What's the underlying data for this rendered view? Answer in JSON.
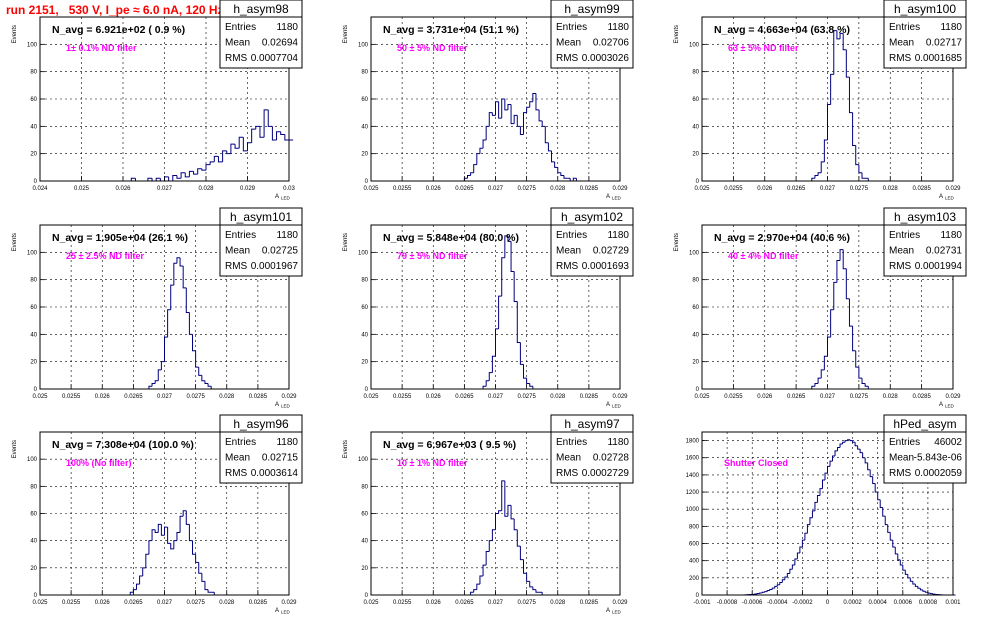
{
  "canvas_title": "run 2151,   530 V, I_pe ≈ 6.0 nA, 120 Hz",
  "colors": {
    "histogram": "#000080",
    "annotation": "#ff00ff",
    "title": "#ff0000",
    "grid": "#000000"
  },
  "chart_data": [
    {
      "type": "bar",
      "name": "h_asym98",
      "navg": "N_avg = 6.921e+02 ( 0.9 %)",
      "filter": "1± 0.1% ND filter",
      "stats": [
        [
          "Entries",
          "1180"
        ],
        [
          "Mean",
          "0.02694"
        ],
        [
          "RMS",
          "0.0007704"
        ]
      ],
      "ylabel": "Events",
      "xlabel": "A_LED",
      "xlim": [
        0.024,
        0.03
      ],
      "ylim": [
        0,
        120
      ],
      "xticks": [
        "0.024",
        "0.025",
        "0.026",
        "0.027",
        "0.028",
        "0.029",
        "0.03"
      ],
      "yticks": [
        "0",
        "20",
        "40",
        "60",
        "80",
        "100"
      ],
      "bin_start": 0.024,
      "bin_width": 0.0001,
      "values": [
        0,
        0,
        0,
        0,
        0,
        0,
        0,
        0,
        0,
        0,
        0,
        0,
        0,
        0,
        0,
        0,
        0,
        0,
        0,
        0,
        0,
        0,
        2,
        0,
        0,
        0,
        2,
        0,
        2,
        0,
        3,
        0,
        4,
        2,
        6,
        3,
        7,
        5,
        9,
        8,
        12,
        14,
        18,
        14,
        22,
        20,
        27,
        24,
        32,
        22,
        28,
        38,
        40,
        32,
        52,
        40,
        30,
        36,
        34,
        30,
        30,
        26,
        22,
        20,
        24,
        18,
        22,
        14,
        16,
        10,
        12,
        8,
        10,
        8,
        6,
        6,
        4,
        8,
        6,
        4,
        2,
        4,
        2,
        2,
        2,
        0,
        0,
        0,
        0,
        0,
        0,
        0,
        0,
        0,
        0,
        0,
        0,
        0,
        0,
        0,
        0,
        0,
        0,
        0,
        0,
        0,
        0,
        0,
        0,
        0,
        0,
        0,
        0,
        0,
        0,
        0
      ]
    },
    {
      "type": "bar",
      "name": "h_asym99",
      "navg": "N_avg = 3.731e+04 (51.1 %)",
      "filter": "50 ± 5% ND filter",
      "stats": [
        [
          "Entries",
          "1180"
        ],
        [
          "Mean",
          "0.02706"
        ],
        [
          "RMS",
          "0.0003026"
        ]
      ],
      "ylabel": "Events",
      "xlabel": "A_LED",
      "xlim": [
        0.025,
        0.029
      ],
      "ylim": [
        0,
        120
      ],
      "xticks": [
        "0.025",
        "0.0255",
        "0.026",
        "0.0265",
        "0.027",
        "0.0275",
        "0.028",
        "0.0285",
        "0.029"
      ],
      "yticks": [
        "0",
        "20",
        "40",
        "60",
        "80",
        "100"
      ],
      "bin_start": 0.025,
      "bin_width": 5e-05,
      "values": [
        0,
        0,
        0,
        0,
        0,
        0,
        0,
        0,
        0,
        0,
        0,
        0,
        0,
        0,
        0,
        0,
        0,
        0,
        0,
        0,
        0,
        0,
        0,
        0,
        0,
        0,
        0,
        0,
        0,
        0,
        2,
        4,
        6,
        12,
        20,
        24,
        30,
        40,
        50,
        48,
        58,
        46,
        60,
        52,
        56,
        42,
        48,
        40,
        34,
        50,
        54,
        58,
        64,
        52,
        44,
        40,
        28,
        22,
        14,
        10,
        6,
        4,
        2,
        2,
        0,
        2,
        0,
        0,
        0,
        0,
        0,
        0,
        0,
        0,
        0,
        0,
        0,
        0,
        0,
        0
      ]
    },
    {
      "type": "bar",
      "name": "h_asym100",
      "navg": "N_avg = 4.663e+04 (63.8 %)",
      "filter": "63 ± 5% ND filter",
      "stats": [
        [
          "Entries",
          "1180"
        ],
        [
          "Mean",
          "0.02717"
        ],
        [
          "RMS",
          "0.0001685"
        ]
      ],
      "ylabel": "Events",
      "xlabel": "A_LED",
      "xlim": [
        0.025,
        0.029
      ],
      "ylim": [
        0,
        120
      ],
      "xticks": [
        "0.025",
        "0.0255",
        "0.026",
        "0.0265",
        "0.027",
        "0.0275",
        "0.028",
        "0.0285",
        "0.029"
      ],
      "yticks": [
        "0",
        "20",
        "40",
        "60",
        "80",
        "100"
      ],
      "bin_start": 0.025,
      "bin_width": 5e-05,
      "values": [
        0,
        0,
        0,
        0,
        0,
        0,
        0,
        0,
        0,
        0,
        0,
        0,
        0,
        0,
        0,
        0,
        0,
        0,
        0,
        0,
        0,
        0,
        0,
        0,
        0,
        0,
        0,
        0,
        0,
        0,
        0,
        0,
        0,
        0,
        0,
        2,
        4,
        6,
        14,
        30,
        56,
        78,
        110,
        104,
        108,
        96,
        76,
        50,
        26,
        12,
        6,
        2,
        2,
        0,
        0,
        0,
        0,
        0,
        0,
        0,
        0,
        0,
        0,
        0,
        0,
        0,
        0,
        0,
        0,
        0,
        0,
        0,
        0,
        0,
        0,
        0,
        0,
        0,
        0,
        0
      ]
    },
    {
      "type": "bar",
      "name": "h_asym101",
      "navg": "N_avg = 1.905e+04 (26.1 %)",
      "filter": "25 ± 2.5% ND filter",
      "stats": [
        [
          "Entries",
          "1180"
        ],
        [
          "Mean",
          "0.02725"
        ],
        [
          "RMS",
          "0.0001967"
        ]
      ],
      "ylabel": "Events",
      "xlabel": "A_LED",
      "xlim": [
        0.025,
        0.029
      ],
      "ylim": [
        0,
        120
      ],
      "xticks": [
        "0.025",
        "0.0255",
        "0.026",
        "0.0265",
        "0.027",
        "0.0275",
        "0.028",
        "0.0285",
        "0.029"
      ],
      "yticks": [
        "0",
        "20",
        "40",
        "60",
        "80",
        "100"
      ],
      "bin_start": 0.025,
      "bin_width": 5e-05,
      "values": [
        0,
        0,
        0,
        0,
        0,
        0,
        0,
        0,
        0,
        0,
        0,
        0,
        0,
        0,
        0,
        0,
        0,
        0,
        0,
        0,
        0,
        0,
        0,
        0,
        0,
        0,
        0,
        0,
        0,
        0,
        0,
        0,
        0,
        0,
        0,
        2,
        4,
        6,
        14,
        20,
        38,
        58,
        76,
        92,
        96,
        90,
        74,
        56,
        40,
        28,
        16,
        10,
        6,
        4,
        2,
        0,
        0,
        0,
        0,
        0,
        0,
        0,
        0,
        0,
        0,
        0,
        0,
        0,
        0,
        0,
        0,
        0,
        0,
        0,
        0,
        0,
        0,
        0,
        0,
        0
      ]
    },
    {
      "type": "bar",
      "name": "h_asym102",
      "navg": "N_avg = 5.848e+04 (80.0 %)",
      "filter": "79 ± 5% ND filter",
      "stats": [
        [
          "Entries",
          "1180"
        ],
        [
          "Mean",
          "0.02729"
        ],
        [
          "RMS",
          "0.0001693"
        ]
      ],
      "ylabel": "Events",
      "xlabel": "A_LED",
      "xlim": [
        0.025,
        0.029
      ],
      "ylim": [
        0,
        120
      ],
      "xticks": [
        "0.025",
        "0.0255",
        "0.026",
        "0.0265",
        "0.027",
        "0.0275",
        "0.028",
        "0.0285",
        "0.029"
      ],
      "yticks": [
        "0",
        "20",
        "40",
        "60",
        "80",
        "100"
      ],
      "bin_start": 0.025,
      "bin_width": 5e-05,
      "values": [
        0,
        0,
        0,
        0,
        0,
        0,
        0,
        0,
        0,
        0,
        0,
        0,
        0,
        0,
        0,
        0,
        0,
        0,
        0,
        0,
        0,
        0,
        0,
        0,
        0,
        0,
        0,
        0,
        0,
        0,
        0,
        0,
        0,
        0,
        0,
        0,
        2,
        6,
        12,
        24,
        44,
        68,
        96,
        112,
        108,
        86,
        64,
        34,
        18,
        8,
        4,
        2,
        0,
        0,
        0,
        0,
        0,
        0,
        0,
        0,
        0,
        0,
        0,
        0,
        0,
        0,
        0,
        0,
        0,
        0,
        0,
        0,
        0,
        0,
        0,
        0,
        0,
        0,
        0,
        0
      ]
    },
    {
      "type": "bar",
      "name": "h_asym103",
      "navg": "N_avg = 2.970e+04 (40.6 %)",
      "filter": "40 ± 4% ND filter",
      "stats": [
        [
          "Entries",
          "1180"
        ],
        [
          "Mean",
          "0.02731"
        ],
        [
          "RMS",
          "0.0001994"
        ]
      ],
      "ylabel": "Events",
      "xlabel": "A_LED",
      "xlim": [
        0.025,
        0.029
      ],
      "ylim": [
        0,
        120
      ],
      "xticks": [
        "0.025",
        "0.0255",
        "0.026",
        "0.0265",
        "0.027",
        "0.0275",
        "0.028",
        "0.0285",
        "0.029"
      ],
      "yticks": [
        "0",
        "20",
        "40",
        "60",
        "80",
        "100"
      ],
      "bin_start": 0.025,
      "bin_width": 5e-05,
      "values": [
        0,
        0,
        0,
        0,
        0,
        0,
        0,
        0,
        0,
        0,
        0,
        0,
        0,
        0,
        0,
        0,
        0,
        0,
        0,
        0,
        0,
        0,
        0,
        0,
        0,
        0,
        0,
        0,
        0,
        0,
        0,
        0,
        0,
        0,
        0,
        2,
        4,
        8,
        14,
        24,
        38,
        58,
        78,
        94,
        102,
        88,
        66,
        46,
        28,
        16,
        8,
        4,
        2,
        0,
        0,
        0,
        0,
        0,
        0,
        0,
        0,
        0,
        0,
        0,
        0,
        0,
        0,
        0,
        0,
        0,
        0,
        0,
        0,
        0,
        0,
        0,
        0,
        0,
        0,
        0
      ]
    },
    {
      "type": "bar",
      "name": "h_asym96",
      "navg": "N_avg = 7.308e+04 (100.0 %)",
      "filter": "100% (No filter)",
      "stats": [
        [
          "Entries",
          "1180"
        ],
        [
          "Mean",
          "0.02715"
        ],
        [
          "RMS",
          "0.0003614"
        ]
      ],
      "ylabel": "Events",
      "xlabel": "A_LED",
      "xlim": [
        0.025,
        0.029
      ],
      "ylim": [
        0,
        120
      ],
      "xticks": [
        "0.025",
        "0.0255",
        "0.026",
        "0.0265",
        "0.027",
        "0.0275",
        "0.028",
        "0.0285",
        "0.029"
      ],
      "yticks": [
        "0",
        "20",
        "40",
        "60",
        "80",
        "100"
      ],
      "bin_start": 0.025,
      "bin_width": 5e-05,
      "values": [
        0,
        0,
        0,
        0,
        0,
        0,
        0,
        0,
        0,
        0,
        0,
        0,
        0,
        0,
        0,
        0,
        0,
        0,
        0,
        0,
        0,
        0,
        0,
        0,
        0,
        0,
        0,
        0,
        0,
        2,
        4,
        8,
        14,
        20,
        30,
        40,
        48,
        46,
        52,
        44,
        50,
        38,
        34,
        40,
        46,
        58,
        62,
        52,
        40,
        30,
        24,
        16,
        10,
        4,
        2,
        2,
        0,
        0,
        0,
        0,
        0,
        0,
        0,
        0,
        0,
        0,
        0,
        0,
        0,
        0,
        0,
        0,
        0,
        0,
        0,
        0,
        0,
        0,
        0,
        0
      ]
    },
    {
      "type": "bar",
      "name": "h_asym97",
      "navg": "N_avg = 6.967e+03 ( 9.5 %)",
      "filter": "10 ± 1% ND filter",
      "stats": [
        [
          "Entries",
          "1180"
        ],
        [
          "Mean",
          "0.02728"
        ],
        [
          "RMS",
          "0.0002729"
        ]
      ],
      "ylabel": "Events",
      "xlabel": "A_LED",
      "xlim": [
        0.025,
        0.029
      ],
      "ylim": [
        0,
        120
      ],
      "xticks": [
        "0.025",
        "0.0255",
        "0.026",
        "0.0265",
        "0.027",
        "0.0275",
        "0.028",
        "0.0285",
        "0.029"
      ],
      "yticks": [
        "0",
        "20",
        "40",
        "60",
        "80",
        "100"
      ],
      "bin_start": 0.025,
      "bin_width": 5e-05,
      "values": [
        0,
        0,
        0,
        0,
        0,
        0,
        0,
        0,
        0,
        0,
        0,
        0,
        0,
        0,
        0,
        0,
        0,
        0,
        0,
        0,
        0,
        0,
        0,
        0,
        0,
        0,
        0,
        0,
        0,
        0,
        0,
        0,
        2,
        4,
        8,
        14,
        22,
        32,
        40,
        48,
        60,
        62,
        84,
        58,
        66,
        56,
        48,
        36,
        26,
        16,
        10,
        6,
        4,
        2,
        2,
        0,
        0,
        0,
        0,
        0,
        0,
        0,
        0,
        0,
        0,
        0,
        0,
        0,
        0,
        0,
        0,
        0,
        0,
        0,
        0,
        0,
        0,
        0,
        0,
        0
      ]
    },
    {
      "type": "bar",
      "name": "hPed_asym",
      "navg": "",
      "filter": "Shutter Closed",
      "stats": [
        [
          "Entries",
          "46002"
        ],
        [
          "Mean",
          "-5.843e-06"
        ],
        [
          "RMS",
          "0.0002059"
        ]
      ],
      "ylabel": "",
      "xlabel": "",
      "xlim": [
        -0.001,
        0.001
      ],
      "ylim": [
        0,
        1900
      ],
      "xticks": [
        "-0.001",
        "-0.0008",
        "-0.0006",
        "-0.0004",
        "-0.0002",
        "0",
        "0.0002",
        "0.0004",
        "0.0006",
        "0.0008",
        "0.001"
      ],
      "yticks": [
        "0",
        "200",
        "400",
        "600",
        "800",
        "1000",
        "1200",
        "1400",
        "1600",
        "1800"
      ],
      "bin_start": -0.001,
      "bin_width": 2e-05,
      "values": [
        0,
        0,
        0,
        0,
        0,
        0,
        0,
        0,
        0,
        0,
        0,
        0,
        0,
        0,
        0,
        0,
        0,
        2,
        4,
        6,
        8,
        12,
        18,
        24,
        32,
        40,
        52,
        64,
        80,
        100,
        120,
        146,
        178,
        210,
        250,
        300,
        350,
        420,
        490,
        560,
        640,
        720,
        820,
        900,
        980,
        1080,
        1160,
        1240,
        1340,
        1420,
        1500,
        1560,
        1620,
        1680,
        1720,
        1760,
        1780,
        1800,
        1810,
        1800,
        1780,
        1740,
        1700,
        1660,
        1600,
        1540,
        1460,
        1380,
        1300,
        1200,
        1110,
        1020,
        920,
        820,
        730,
        640,
        560,
        480,
        410,
        350,
        290,
        240,
        200,
        160,
        128,
        100,
        78,
        60,
        44,
        32,
        22,
        16,
        10,
        6,
        4,
        2,
        0,
        0,
        0,
        0,
        0,
        0,
        0,
        0,
        0,
        0,
        0,
        0,
        0,
        0,
        0,
        0
      ]
    }
  ]
}
